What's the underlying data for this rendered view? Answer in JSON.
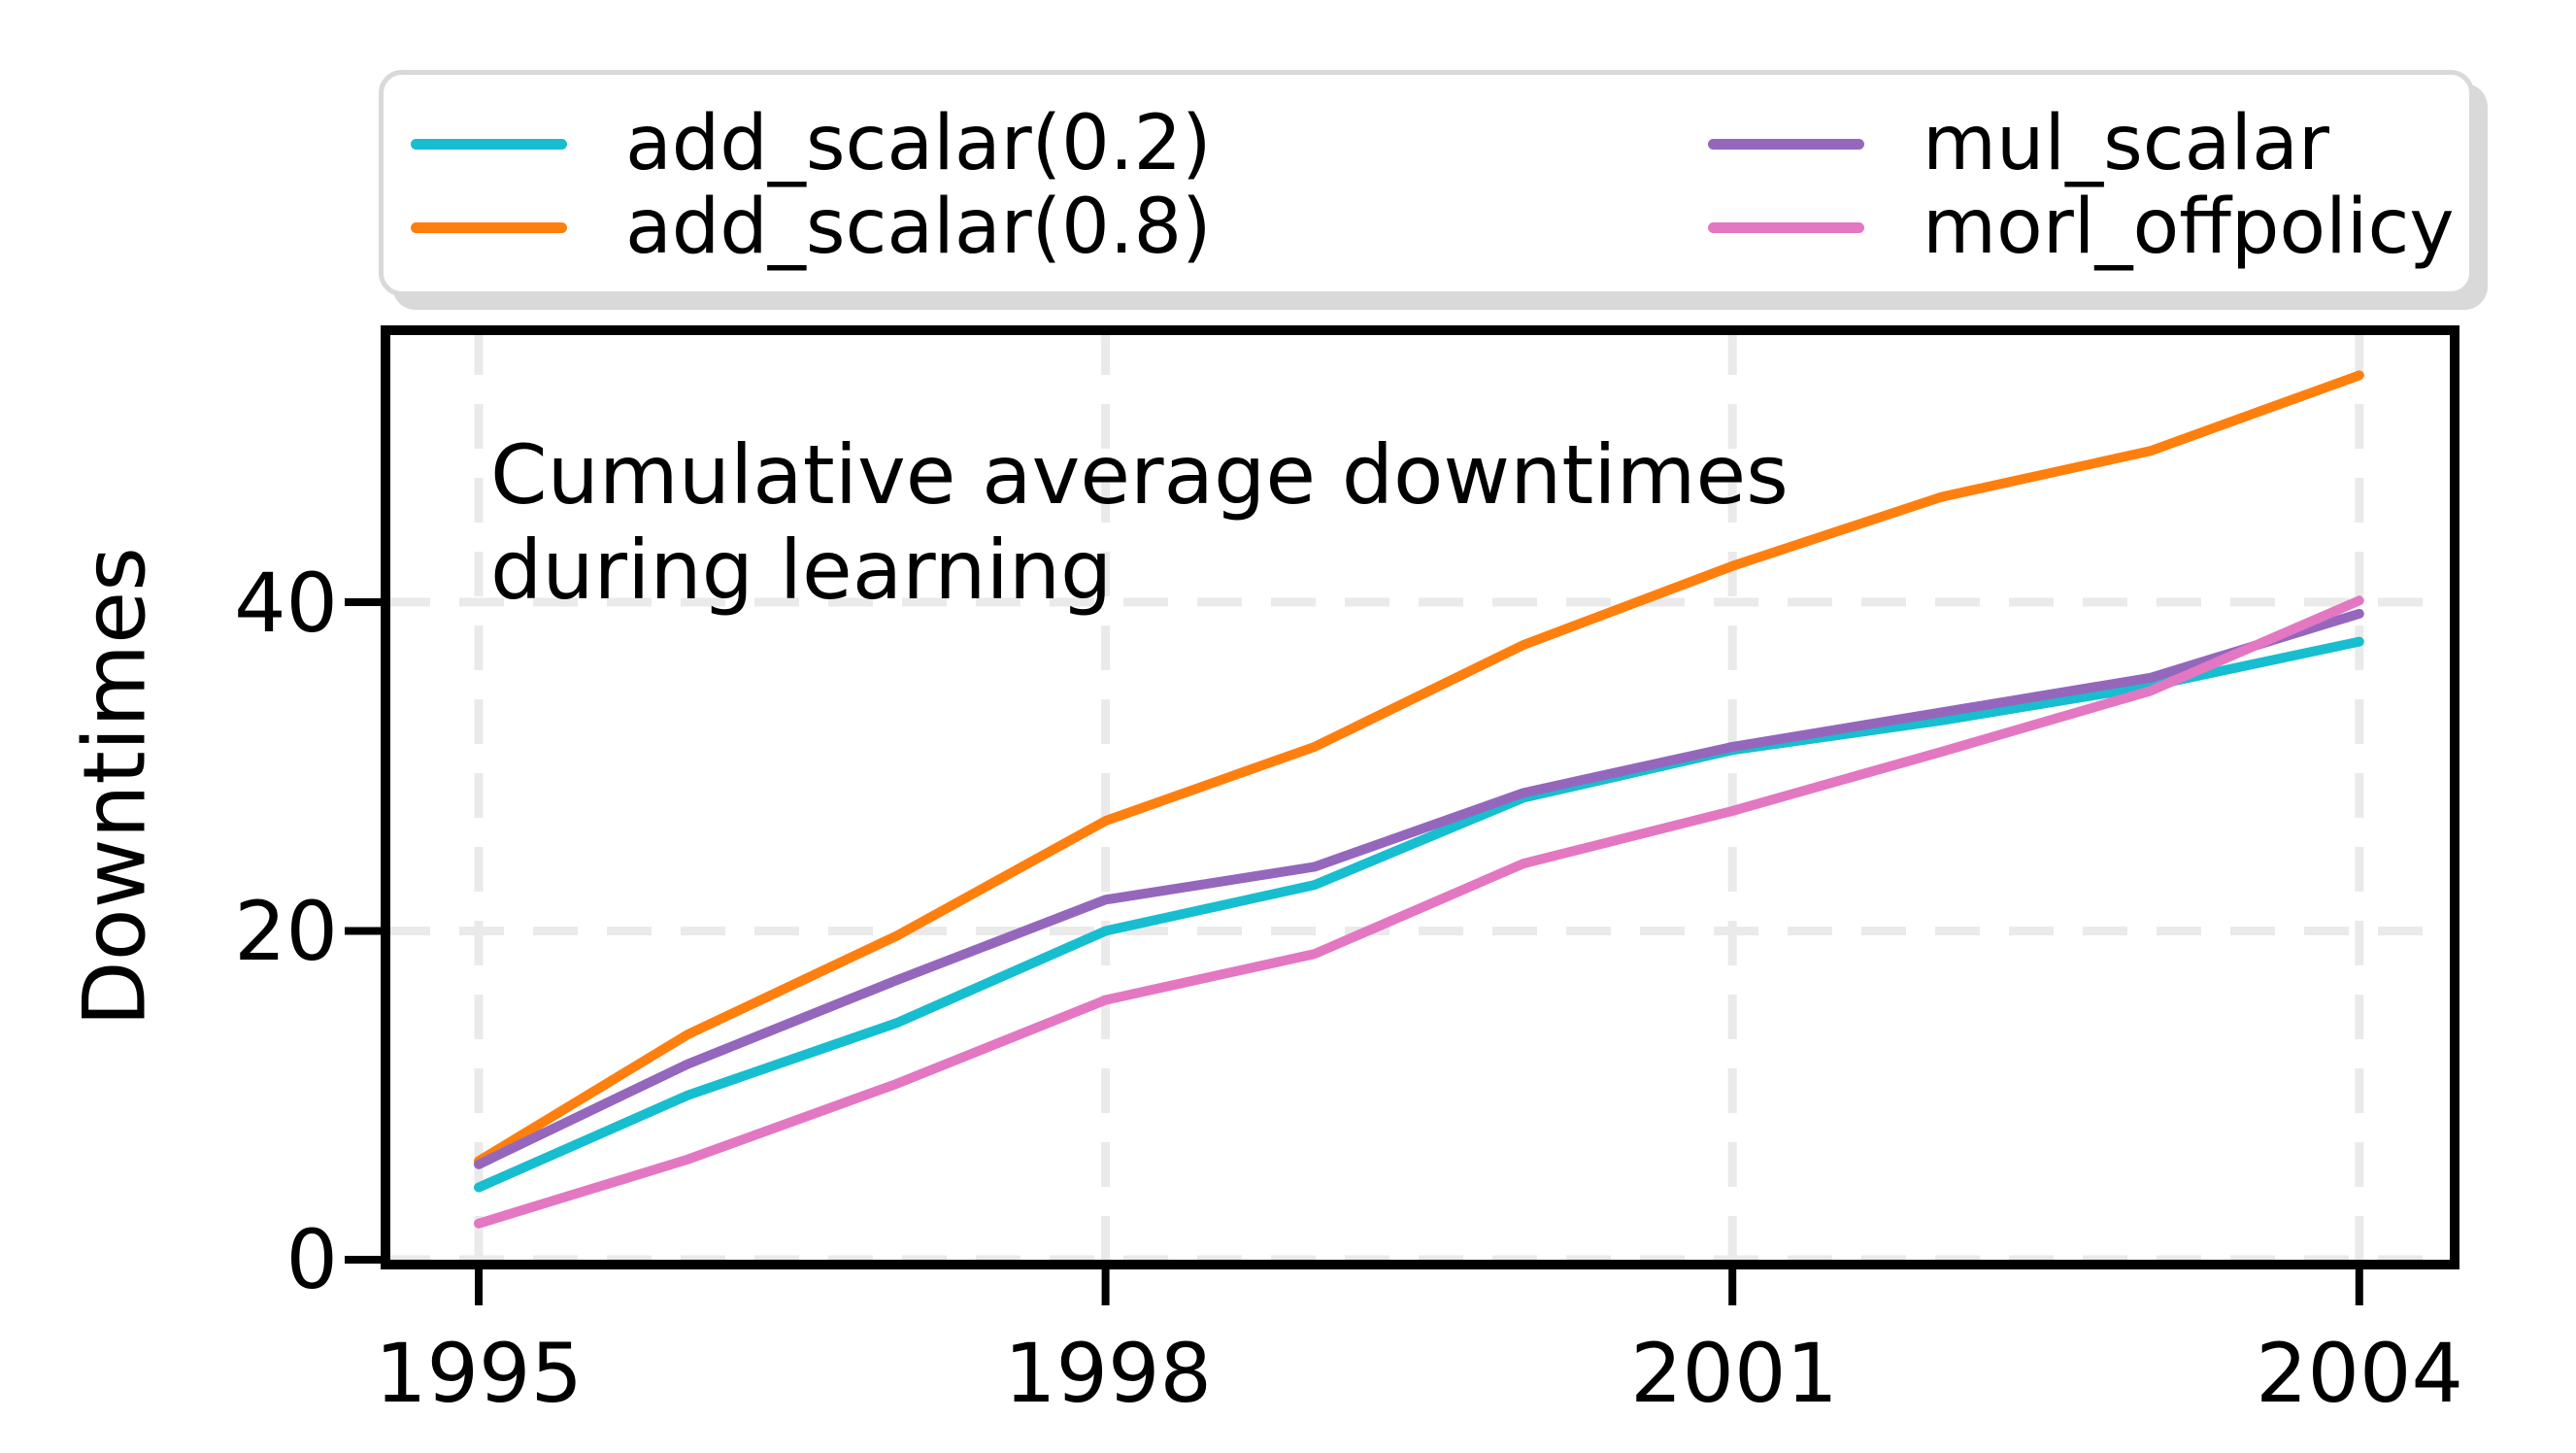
{
  "figure": {
    "background": "#ffffff",
    "text_color": "#000000",
    "axis_color": "#000000",
    "grid_color": "#eaeaea",
    "legend_border_color": "#d9d9d9"
  },
  "annotation": {
    "line1": "Cumulative average downtimes",
    "line2": "during learning"
  },
  "axes": {
    "ylabel": "Downtimes",
    "ytick_labels": [
      "0",
      "20",
      "40"
    ],
    "xtick_labels": [
      "1995",
      "1998",
      "2001",
      "2004"
    ]
  },
  "legend": {
    "items": [
      {
        "label": "add_scalar(0.2)",
        "color": "#17becf"
      },
      {
        "label": "add_scalar(0.8)",
        "color": "#ff7f0e"
      },
      {
        "label": "mul_scalar",
        "color": "#9467bd"
      },
      {
        "label": "morl_offpolicy",
        "color": "#e377c2"
      }
    ]
  },
  "chart_data": {
    "type": "line",
    "title": "",
    "xlabel": "",
    "ylabel": "Downtimes",
    "annotation": "Cumulative average downtimes during learning",
    "x": [
      1995,
      1996,
      1997,
      1998,
      1999,
      2000,
      2001,
      2002,
      2003,
      2004
    ],
    "series": [
      {
        "name": "add_scalar(0.2)",
        "color": "#17becf",
        "values": [
          4.4,
          10.0,
          14.4,
          20.0,
          22.8,
          28.1,
          31.0,
          32.8,
          34.9,
          37.6
        ]
      },
      {
        "name": "add_scalar(0.8)",
        "color": "#ff7f0e",
        "values": [
          6.0,
          13.7,
          19.7,
          26.7,
          31.2,
          37.4,
          42.2,
          46.4,
          49.2,
          53.8
        ]
      },
      {
        "name": "mul_scalar",
        "color": "#9467bd",
        "values": [
          5.8,
          11.9,
          17.0,
          21.9,
          23.9,
          28.4,
          31.2,
          33.3,
          35.4,
          39.3
        ]
      },
      {
        "name": "morl_offpolicy",
        "color": "#e377c2",
        "values": [
          2.2,
          6.1,
          10.7,
          15.8,
          18.6,
          24.1,
          27.3,
          30.9,
          34.6,
          40.1
        ]
      }
    ],
    "xticks": [
      1995,
      1998,
      2001,
      2004
    ],
    "yticks": [
      0,
      20,
      40
    ],
    "xlim": [
      1994.55,
      2004.45
    ],
    "ylim": [
      -0.5,
      56.5
    ],
    "grid": true,
    "grid_style": "dashed",
    "legend_position": "top",
    "legend_columns": 2
  }
}
